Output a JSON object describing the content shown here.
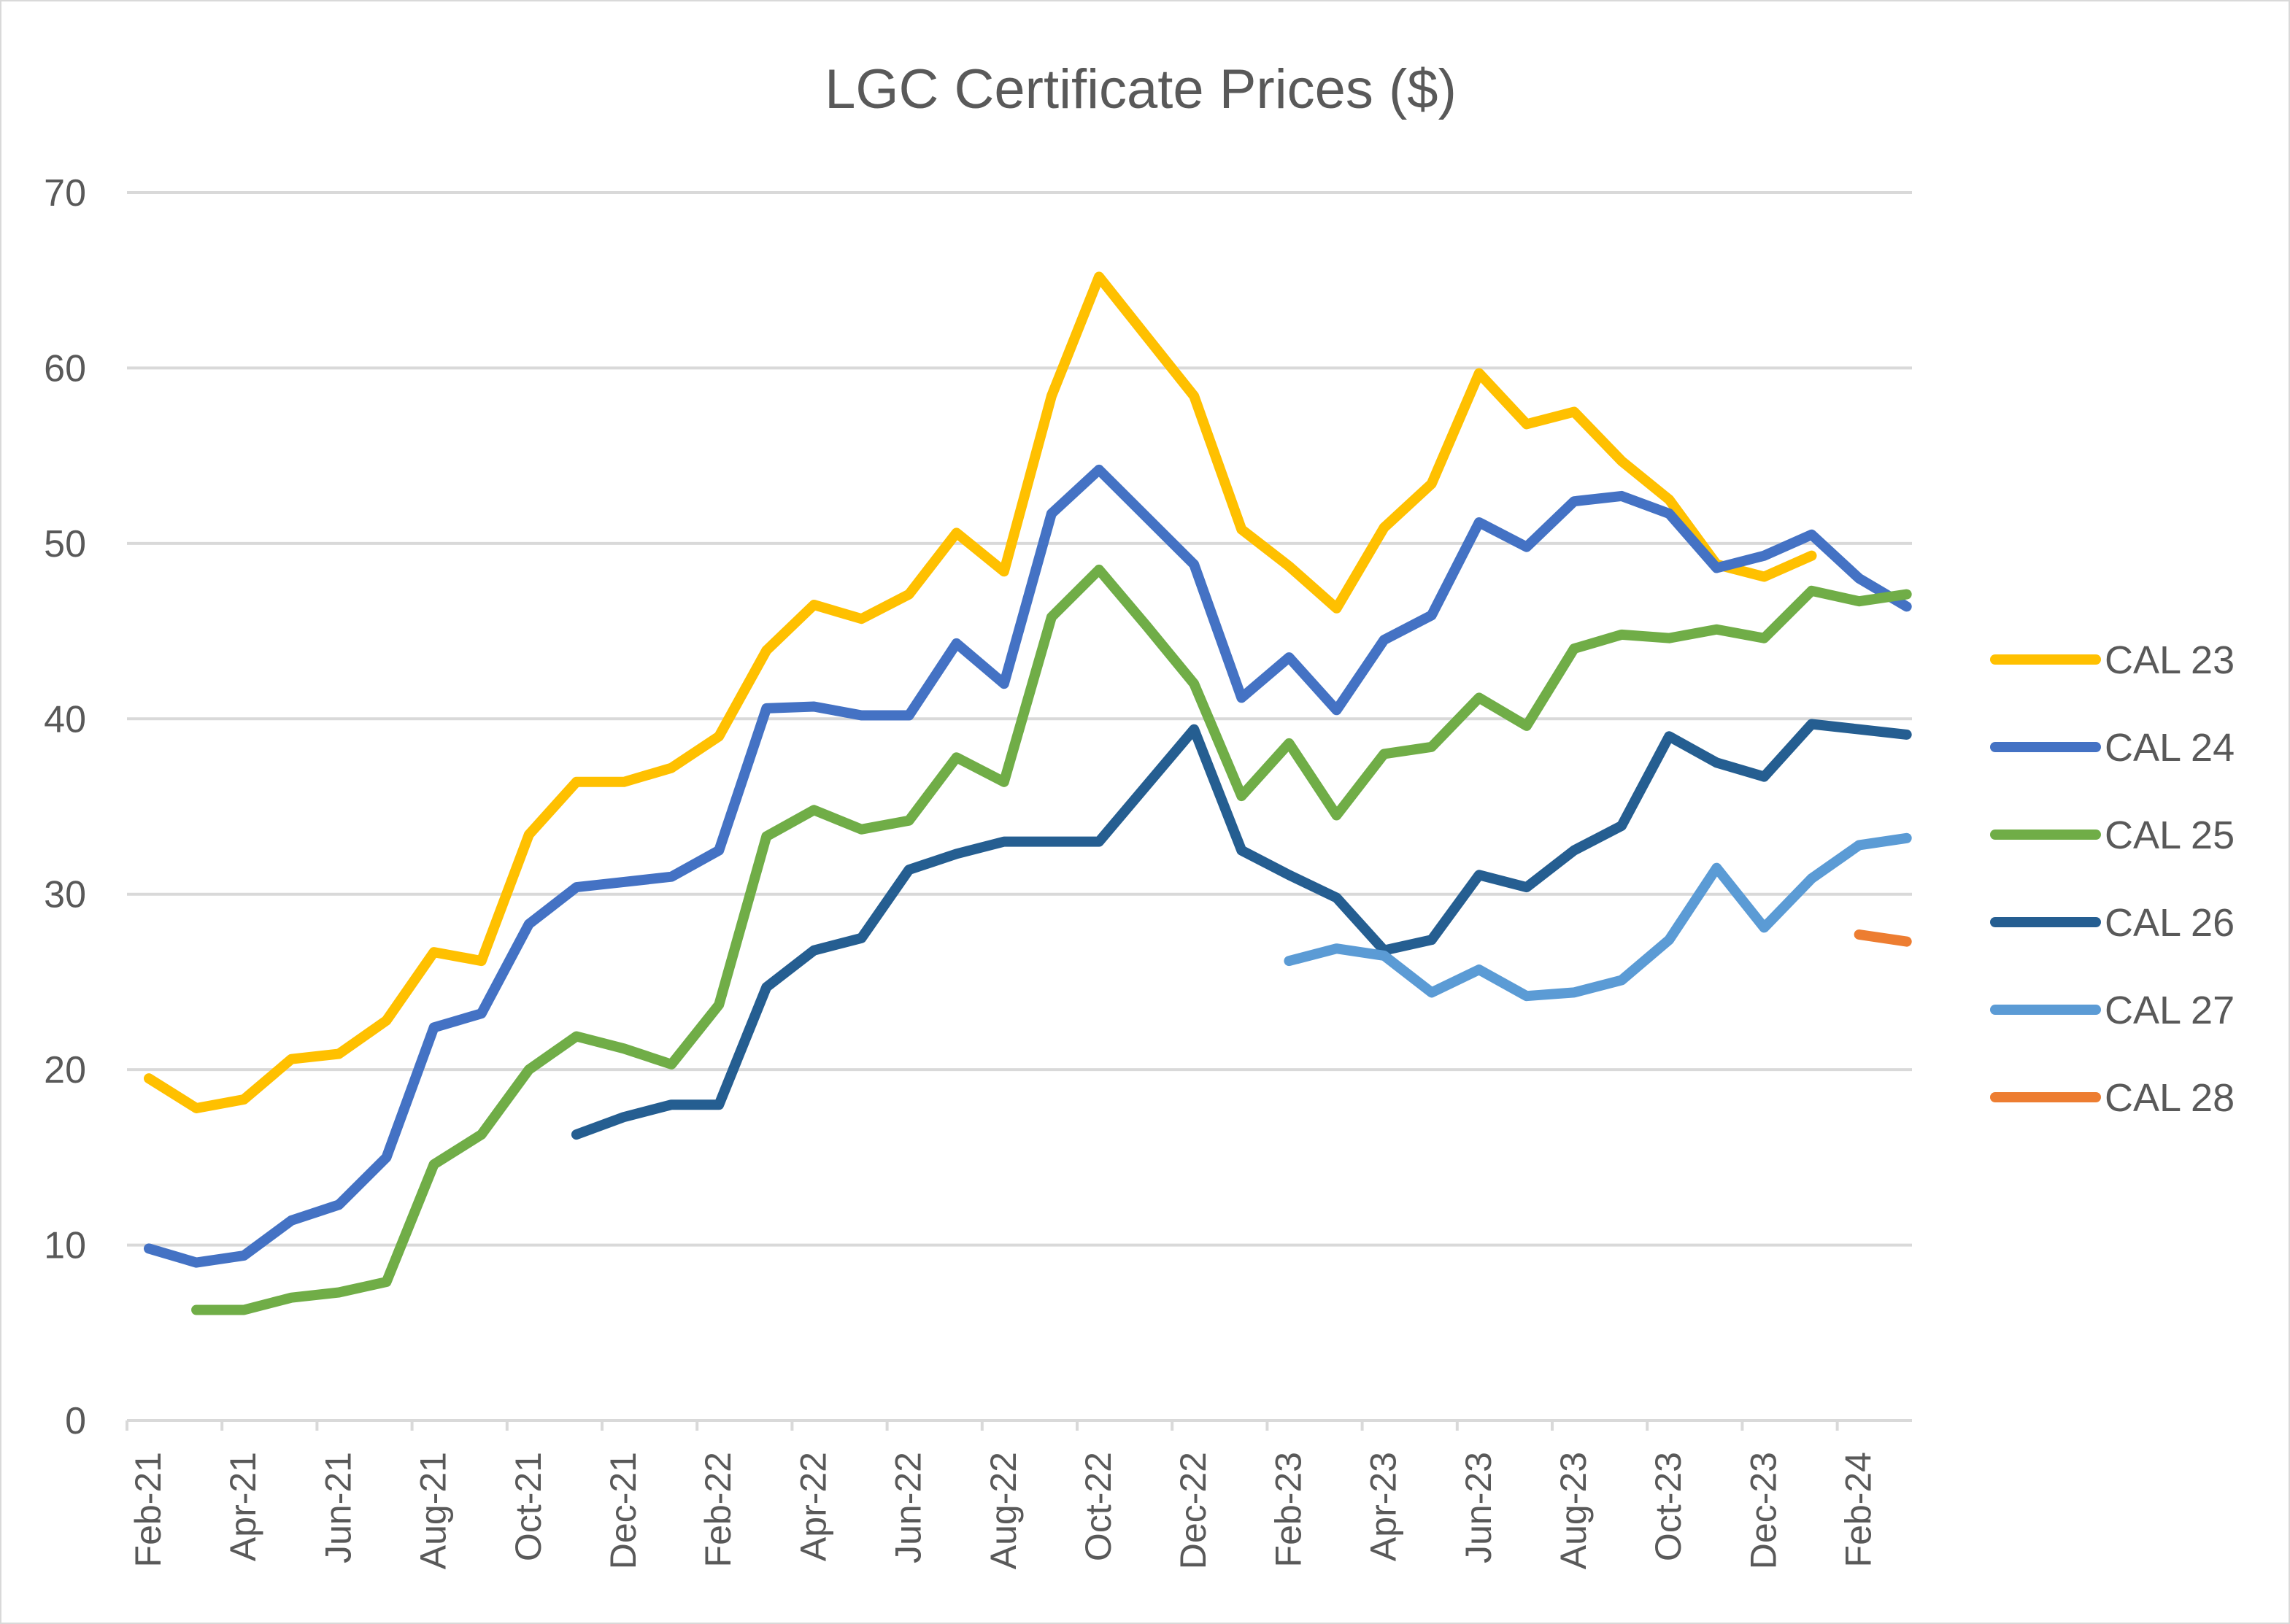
{
  "chart_data": {
    "type": "line",
    "title": "LGC Certificate Prices ($)",
    "xlabel": "",
    "ylabel": "",
    "ylim": [
      0,
      70
    ],
    "yticks": [
      "0",
      "10",
      "20",
      "30",
      "40",
      "50",
      "60",
      "70"
    ],
    "grid": true,
    "legend_position": "right",
    "x": [
      "Feb-21",
      "Mar-21",
      "Apr-21",
      "May-21",
      "Jun-21",
      "Jul-21",
      "Aug-21",
      "Sep-21",
      "Oct-21",
      "Nov-21",
      "Dec-21",
      "Jan-22",
      "Feb-22",
      "Mar-22",
      "Apr-22",
      "May-22",
      "Jun-22",
      "Jul-22",
      "Aug-22",
      "Sep-22",
      "Oct-22",
      "Nov-22",
      "Dec-22",
      "Jan-23",
      "Feb-23",
      "Mar-23",
      "Apr-23",
      "May-23",
      "Jun-23",
      "Jul-23",
      "Aug-23",
      "Sep-23",
      "Oct-23",
      "Nov-23",
      "Dec-23",
      "Jan-24",
      "Feb-24",
      "Mar-24"
    ],
    "xtick_labels": [
      "Feb-21",
      "Apr-21",
      "Jun-21",
      "Aug-21",
      "Oct-21",
      "Dec-21",
      "Feb-22",
      "Apr-22",
      "Jun-22",
      "Aug-22",
      "Oct-22",
      "Dec-22",
      "Feb-23",
      "Apr-23",
      "Jun-23",
      "Aug-23",
      "Oct-23",
      "Dec-23",
      "Feb-24"
    ],
    "series": [
      {
        "name": "CAL 23",
        "color": "#FFC000",
        "values": [
          19.5,
          17.8,
          18.3,
          20.6,
          20.9,
          22.8,
          26.7,
          26.2,
          33.4,
          36.4,
          36.4,
          37.2,
          39.0,
          43.9,
          46.5,
          45.7,
          47.1,
          50.6,
          48.4,
          58.4,
          65.2,
          61.8,
          58.4,
          50.8,
          48.7,
          46.3,
          50.9,
          53.4,
          59.7,
          56.8,
          57.5,
          54.7,
          52.5,
          48.8,
          48.1,
          49.3,
          null,
          null
        ]
      },
      {
        "name": "CAL 24",
        "color": "#4472C4",
        "values": [
          9.8,
          9.0,
          9.4,
          11.4,
          12.3,
          15.0,
          22.4,
          23.2,
          28.3,
          30.4,
          30.7,
          31.0,
          32.5,
          40.6,
          40.7,
          40.2,
          40.2,
          44.3,
          42.0,
          51.7,
          54.2,
          51.5,
          48.8,
          41.2,
          43.5,
          40.5,
          44.5,
          45.9,
          51.2,
          49.8,
          52.4,
          52.7,
          51.7,
          48.6,
          49.3,
          50.5,
          48.0,
          46.4
        ]
      },
      {
        "name": "CAL 25",
        "color": "#70AD47",
        "values": [
          null,
          6.3,
          6.3,
          7.0,
          7.3,
          7.9,
          14.6,
          16.3,
          20.0,
          21.9,
          21.2,
          20.3,
          23.7,
          33.3,
          34.8,
          33.7,
          34.2,
          37.8,
          36.4,
          45.8,
          48.5,
          45.3,
          42.0,
          35.6,
          38.6,
          34.5,
          38.0,
          38.4,
          41.2,
          39.6,
          44.0,
          44.8,
          44.6,
          45.1,
          44.6,
          47.3,
          46.7,
          47.1
        ]
      },
      {
        "name": "CAL 26",
        "color": "#255E91",
        "values": [
          null,
          null,
          null,
          null,
          null,
          null,
          null,
          null,
          null,
          16.3,
          17.3,
          18.0,
          18.0,
          24.7,
          26.8,
          27.5,
          31.4,
          32.3,
          33.0,
          33.0,
          33.0,
          36.2,
          39.4,
          32.5,
          31.1,
          29.8,
          26.8,
          27.4,
          31.1,
          30.4,
          32.5,
          33.9,
          39.0,
          37.5,
          36.7,
          39.7,
          39.4,
          39.1
        ]
      },
      {
        "name": "CAL 27",
        "color": "#5B9BD5",
        "values": [
          null,
          null,
          null,
          null,
          null,
          null,
          null,
          null,
          null,
          null,
          null,
          null,
          null,
          null,
          null,
          null,
          null,
          null,
          null,
          null,
          null,
          null,
          null,
          null,
          26.2,
          26.9,
          26.5,
          24.4,
          25.7,
          24.2,
          24.4,
          25.1,
          27.4,
          31.5,
          28.1,
          30.9,
          32.8,
          33.2
        ]
      },
      {
        "name": "CAL 28",
        "color": "#ED7D31",
        "values": [
          null,
          null,
          null,
          null,
          null,
          null,
          null,
          null,
          null,
          null,
          null,
          null,
          null,
          null,
          null,
          null,
          null,
          null,
          null,
          null,
          null,
          null,
          null,
          null,
          null,
          null,
          null,
          null,
          null,
          null,
          null,
          null,
          null,
          null,
          null,
          null,
          27.7,
          27.3
        ]
      }
    ]
  }
}
